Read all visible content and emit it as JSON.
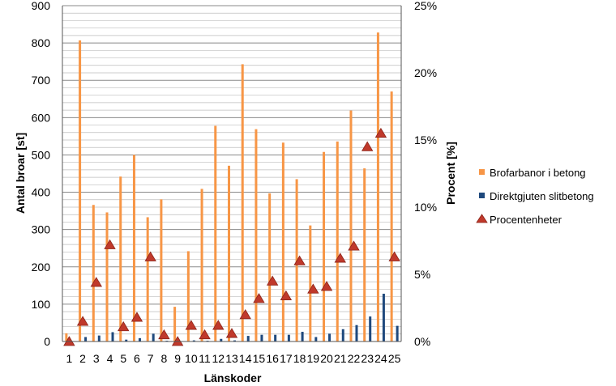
{
  "chart_data": {
    "type": "bar",
    "categories": [
      "1",
      "2",
      "3",
      "4",
      "5",
      "6",
      "7",
      "8",
      "9",
      "10",
      "11",
      "12",
      "13",
      "14",
      "15",
      "16",
      "17",
      "18",
      "19",
      "20",
      "21",
      "22",
      "23",
      "24",
      "25"
    ],
    "series": [
      {
        "name": "Brofarbanor i betong",
        "type": "bar",
        "axis": "left",
        "color": "#f79646",
        "values": [
          22,
          807,
          366,
          346,
          442,
          500,
          333,
          381,
          93,
          242,
          409,
          578,
          471,
          743,
          569,
          397,
          533,
          435,
          311,
          508,
          536,
          619,
          464,
          828,
          670
        ]
      },
      {
        "name": "Direktgjuten slitbetong",
        "type": "bar",
        "axis": "left",
        "color": "#1f497d",
        "values": [
          0,
          12,
          16,
          25,
          5,
          9,
          21,
          2,
          0,
          3,
          2,
          7,
          3,
          15,
          18,
          18,
          18,
          26,
          12,
          21,
          33,
          44,
          67,
          128,
          42
        ]
      },
      {
        "name": "Procentenheter",
        "type": "scatter",
        "axis": "right",
        "marker": "triangle",
        "color": "#c0392b",
        "values": [
          0.0,
          1.5,
          4.4,
          7.2,
          1.1,
          1.8,
          6.3,
          0.5,
          0.0,
          1.2,
          0.5,
          1.2,
          0.6,
          2.0,
          3.2,
          4.5,
          3.4,
          6.0,
          3.9,
          4.1,
          6.2,
          7.1,
          14.5,
          15.5,
          6.3
        ]
      }
    ],
    "xlabel": "Länskoder",
    "ylabel": "Antal broar [st]",
    "y2label": "Procent [%]",
    "ylim": [
      0,
      900
    ],
    "y2lim": [
      0,
      25
    ],
    "yticks": [
      "0",
      "100",
      "200",
      "300",
      "400",
      "500",
      "600",
      "700",
      "800",
      "900"
    ],
    "y2ticks": [
      "0%",
      "5%",
      "10%",
      "15%",
      "20%",
      "25%"
    ],
    "grid": true,
    "legend_position": "right"
  }
}
